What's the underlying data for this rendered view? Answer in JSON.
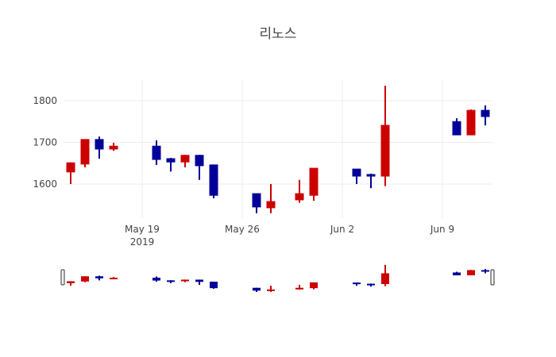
{
  "chart_data": {
    "type": "candlestick",
    "title": "리노스",
    "xlabel": "",
    "ylabel": "",
    "x_tick_labels": [
      "May 19\n2019",
      "May 26",
      "Jun 2",
      "Jun 9"
    ],
    "y_tick_labels": [
      "1600",
      "1700",
      "1800"
    ],
    "ylim": [
      1512,
      1853
    ],
    "grid": true,
    "increasing_color": "#cc0000",
    "decreasing_color": "#000099",
    "rangeslider": true,
    "x": [
      "2019-05-14",
      "2019-05-15",
      "2019-05-16",
      "2019-05-17",
      "2019-05-20",
      "2019-05-21",
      "2019-05-22",
      "2019-05-23",
      "2019-05-24",
      "2019-05-27",
      "2019-05-28",
      "2019-05-30",
      "2019-05-31",
      "2019-06-03",
      "2019-06-04",
      "2019-06-05",
      "2019-06-10",
      "2019-06-11",
      "2019-06-12"
    ],
    "open": [
      1629,
      1648,
      1707,
      1684,
      1691,
      1661,
      1653,
      1669,
      1646,
      1577,
      1543,
      1562,
      1573,
      1636,
      1623,
      1619,
      1750,
      1718,
      1777
    ],
    "high": [
      1652,
      1707,
      1714,
      1699,
      1705,
      1663,
      1670,
      1670,
      1646,
      1577,
      1600,
      1610,
      1638,
      1636,
      1625,
      1836,
      1758,
      1779,
      1789
    ],
    "low": [
      1600,
      1640,
      1661,
      1680,
      1646,
      1630,
      1640,
      1610,
      1566,
      1530,
      1530,
      1555,
      1560,
      1600,
      1590,
      1595,
      1718,
      1718,
      1741
    ],
    "close": [
      1651,
      1707,
      1684,
      1691,
      1659,
      1653,
      1669,
      1644,
      1573,
      1545,
      1558,
      1577,
      1638,
      1619,
      1619,
      1741,
      1718,
      1777,
      1762
    ]
  }
}
